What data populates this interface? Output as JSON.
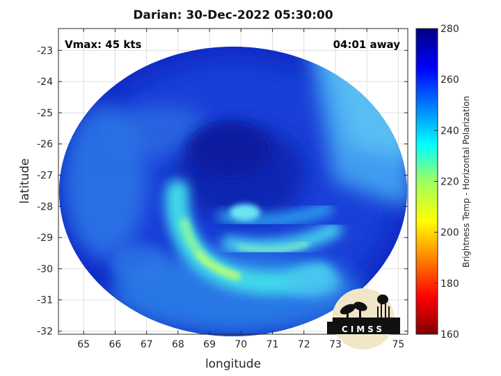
{
  "title": "Darian: 30-Dec-2022 05:30:00",
  "annotations": {
    "vmax": "Vmax: 45 kts",
    "away": "04:01 away"
  },
  "axes": {
    "xlabel": "longitude",
    "ylabel": "latitude",
    "xticks": [
      "65",
      "66",
      "67",
      "68",
      "69",
      "70",
      "71",
      "72",
      "73",
      "74",
      "75"
    ],
    "yticks": [
      "-23",
      "-24",
      "-25",
      "-26",
      "-27",
      "-28",
      "-29",
      "-30",
      "-31",
      "-32"
    ]
  },
  "colorbar": {
    "label": "Brightness Temp - Horizontal Polarization",
    "ticks": [
      "280",
      "260",
      "240",
      "220",
      "200",
      "180",
      "160"
    ]
  },
  "logo": {
    "text": "CIMSS"
  },
  "chart_data": {
    "type": "heatmap",
    "title": "Darian: 30-Dec-2022 05:30:00",
    "xlabel": "longitude",
    "ylabel": "latitude",
    "xlim": [
      64.2,
      75.3
    ],
    "ylim": [
      -32.1,
      -22.3
    ],
    "x_ticks": [
      65,
      66,
      67,
      68,
      69,
      70,
      71,
      72,
      73,
      74,
      75
    ],
    "y_ticks": [
      -23,
      -24,
      -25,
      -26,
      -27,
      -28,
      -29,
      -30,
      -31,
      -32
    ],
    "grid": true,
    "colorbar": {
      "min": 160,
      "max": 280,
      "label": "Brightness Temp - Horizontal Polarization",
      "colormap": "jet"
    },
    "center": [
      70.0,
      -28.0
    ],
    "annotations": [
      "Vmax: 45 kts",
      "04:01 away"
    ]
  }
}
